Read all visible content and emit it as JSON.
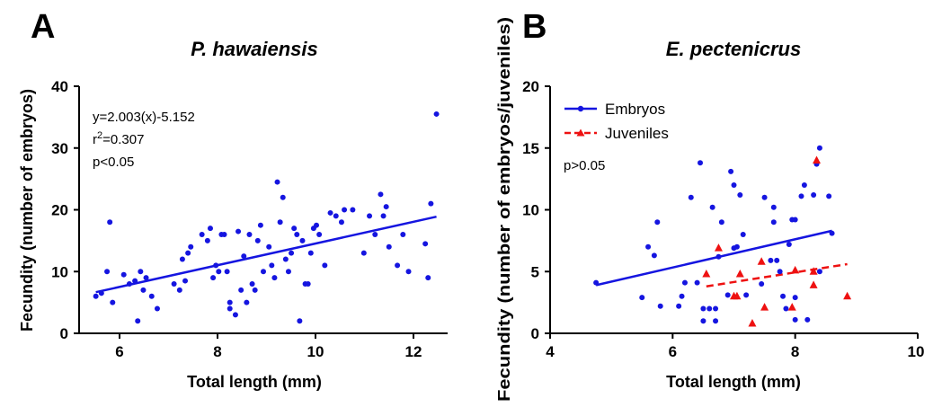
{
  "panels": [
    {
      "letter": "A",
      "title": "P. hawaiensis"
    },
    {
      "letter": "B",
      "title": "E. pectenicrus"
    }
  ],
  "chart_data": [
    {
      "type": "scatter",
      "panel": "A",
      "title": "P. hawaiensis",
      "xlabel": "Total length (mm)",
      "ylabel": "Fecundity (number of embryos)",
      "xlim": [
        5.6,
        12.2
      ],
      "ylim": [
        0,
        40
      ],
      "xticks": [
        "6",
        "8",
        "10",
        "12"
      ],
      "yticks": [
        "0",
        "10",
        "20",
        "30",
        "40"
      ],
      "grid": false,
      "annotations": {
        "equation": "y=2.003(x)-5.152",
        "r2_base": "r",
        "r2_exp": "2",
        "r2_value": "=0.307",
        "p": "p<0.05"
      },
      "series": [
        {
          "color": "#1515e0",
          "marker": "circle",
          "points": [
            [
              5.9,
              6
            ],
            [
              6.0,
              6.5
            ],
            [
              6.1,
              10
            ],
            [
              6.15,
              18
            ],
            [
              6.2,
              5
            ],
            [
              6.4,
              9.5
            ],
            [
              6.5,
              8
            ],
            [
              6.6,
              8.5
            ],
            [
              6.65,
              2
            ],
            [
              6.7,
              10
            ],
            [
              6.75,
              7
            ],
            [
              6.8,
              9
            ],
            [
              6.9,
              6
            ],
            [
              7.0,
              4
            ],
            [
              7.3,
              8
            ],
            [
              7.4,
              7
            ],
            [
              7.45,
              12
            ],
            [
              7.5,
              8.5
            ],
            [
              7.55,
              13
            ],
            [
              7.6,
              14
            ],
            [
              7.8,
              16
            ],
            [
              7.9,
              15
            ],
            [
              7.95,
              17
            ],
            [
              8.0,
              9
            ],
            [
              8.05,
              11
            ],
            [
              8.1,
              10
            ],
            [
              8.15,
              16
            ],
            [
              8.2,
              16
            ],
            [
              8.25,
              10
            ],
            [
              8.3,
              5
            ],
            [
              8.3,
              4
            ],
            [
              8.4,
              3
            ],
            [
              8.45,
              16.5
            ],
            [
              8.5,
              7
            ],
            [
              8.55,
              12.5
            ],
            [
              8.6,
              5
            ],
            [
              8.65,
              16
            ],
            [
              8.7,
              8
            ],
            [
              8.75,
              7
            ],
            [
              8.8,
              15
            ],
            [
              8.85,
              17.5
            ],
            [
              8.9,
              10
            ],
            [
              9.0,
              14
            ],
            [
              9.05,
              11
            ],
            [
              9.1,
              9
            ],
            [
              9.15,
              24.5
            ],
            [
              9.2,
              18
            ],
            [
              9.25,
              22
            ],
            [
              9.3,
              12
            ],
            [
              9.35,
              10
            ],
            [
              9.4,
              13
            ],
            [
              9.45,
              17
            ],
            [
              9.5,
              16
            ],
            [
              9.55,
              2
            ],
            [
              9.6,
              15
            ],
            [
              9.65,
              8
            ],
            [
              9.7,
              8
            ],
            [
              9.75,
              13
            ],
            [
              9.8,
              17
            ],
            [
              9.85,
              17.5
            ],
            [
              9.9,
              16
            ],
            [
              10.0,
              11
            ],
            [
              10.1,
              19.5
            ],
            [
              10.2,
              19
            ],
            [
              10.3,
              18
            ],
            [
              10.35,
              20
            ],
            [
              10.5,
              20
            ],
            [
              10.7,
              13
            ],
            [
              10.8,
              19
            ],
            [
              10.9,
              16
            ],
            [
              11.0,
              22.5
            ],
            [
              11.05,
              19
            ],
            [
              11.1,
              20.5
            ],
            [
              11.15,
              14
            ],
            [
              11.3,
              11
            ],
            [
              11.4,
              16
            ],
            [
              11.5,
              10
            ],
            [
              11.8,
              14.5
            ],
            [
              11.85,
              9
            ],
            [
              11.9,
              21
            ],
            [
              12.0,
              35.5
            ]
          ]
        }
      ],
      "fits": [
        {
          "color": "#1515e0",
          "dashed": false,
          "x": [
            5.9,
            12.0
          ],
          "y": [
            6.66,
            18.88
          ]
        }
      ]
    },
    {
      "type": "scatter",
      "panel": "B",
      "title": "E. pectenicrus",
      "xlabel": "Total length (mm)",
      "ylabel": "Fecundity (number of embryos/juveniles)",
      "xlim": [
        4,
        10
      ],
      "ylim": [
        0,
        20
      ],
      "xticks": [
        "4",
        "6",
        "8",
        "10"
      ],
      "yticks": [
        "0",
        "5",
        "10",
        "15",
        "20"
      ],
      "grid": false,
      "legend_position": "top-left",
      "annotations": {
        "p": "p>0.05"
      },
      "series": [
        {
          "name": "Embryos",
          "color": "#1515e0",
          "marker": "circle",
          "points": [
            [
              4.75,
              4.1
            ],
            [
              5.5,
              2.9
            ],
            [
              5.6,
              7
            ],
            [
              5.7,
              6.3
            ],
            [
              5.75,
              9
            ],
            [
              5.8,
              2.2
            ],
            [
              6.1,
              2.2
            ],
            [
              6.15,
              3
            ],
            [
              6.2,
              4.1
            ],
            [
              6.3,
              11
            ],
            [
              6.4,
              4.1
            ],
            [
              6.45,
              13.8
            ],
            [
              6.5,
              2
            ],
            [
              6.5,
              1
            ],
            [
              6.6,
              2
            ],
            [
              6.65,
              10.2
            ],
            [
              6.7,
              1
            ],
            [
              6.7,
              2
            ],
            [
              6.75,
              6.2
            ],
            [
              6.8,
              9
            ],
            [
              6.9,
              3.1
            ],
            [
              6.95,
              13.1
            ],
            [
              7.0,
              12
            ],
            [
              7.0,
              6.9
            ],
            [
              7.05,
              7
            ],
            [
              7.1,
              11.2
            ],
            [
              7.15,
              8
            ],
            [
              7.2,
              3.1
            ],
            [
              7.45,
              4
            ],
            [
              7.5,
              11
            ],
            [
              7.6,
              5.9
            ],
            [
              7.65,
              10.2
            ],
            [
              7.65,
              9
            ],
            [
              7.7,
              5.9
            ],
            [
              7.75,
              5
            ],
            [
              7.8,
              3
            ],
            [
              7.85,
              2
            ],
            [
              7.9,
              7.2
            ],
            [
              7.95,
              9.2
            ],
            [
              8.0,
              9.2
            ],
            [
              8.0,
              2.9
            ],
            [
              8.0,
              1.1
            ],
            [
              8.1,
              11.1
            ],
            [
              8.15,
              12
            ],
            [
              8.2,
              1.1
            ],
            [
              8.3,
              11.2
            ],
            [
              8.35,
              13.7
            ],
            [
              8.4,
              15
            ],
            [
              8.4,
              5
            ],
            [
              8.55,
              11.1
            ],
            [
              8.6,
              8.1
            ]
          ]
        },
        {
          "name": "Juveniles",
          "color": "#ee1111",
          "marker": "triangle",
          "points": [
            [
              6.55,
              4.8
            ],
            [
              6.75,
              6.9
            ],
            [
              7.0,
              3
            ],
            [
              7.05,
              3
            ],
            [
              7.1,
              4.8
            ],
            [
              7.3,
              0.8
            ],
            [
              7.45,
              5.8
            ],
            [
              7.5,
              2.1
            ],
            [
              7.95,
              2.1
            ],
            [
              8.0,
              5.1
            ],
            [
              8.3,
              3.9
            ],
            [
              8.3,
              5
            ],
            [
              8.35,
              14
            ],
            [
              8.85,
              3
            ]
          ]
        }
      ],
      "fits": [
        {
          "color": "#1515e0",
          "dashed": false,
          "x": [
            4.75,
            8.6
          ],
          "y": [
            3.9,
            8.3
          ]
        },
        {
          "color": "#ee1111",
          "dashed": true,
          "x": [
            6.55,
            8.85
          ],
          "y": [
            3.8,
            5.6
          ]
        }
      ]
    }
  ]
}
